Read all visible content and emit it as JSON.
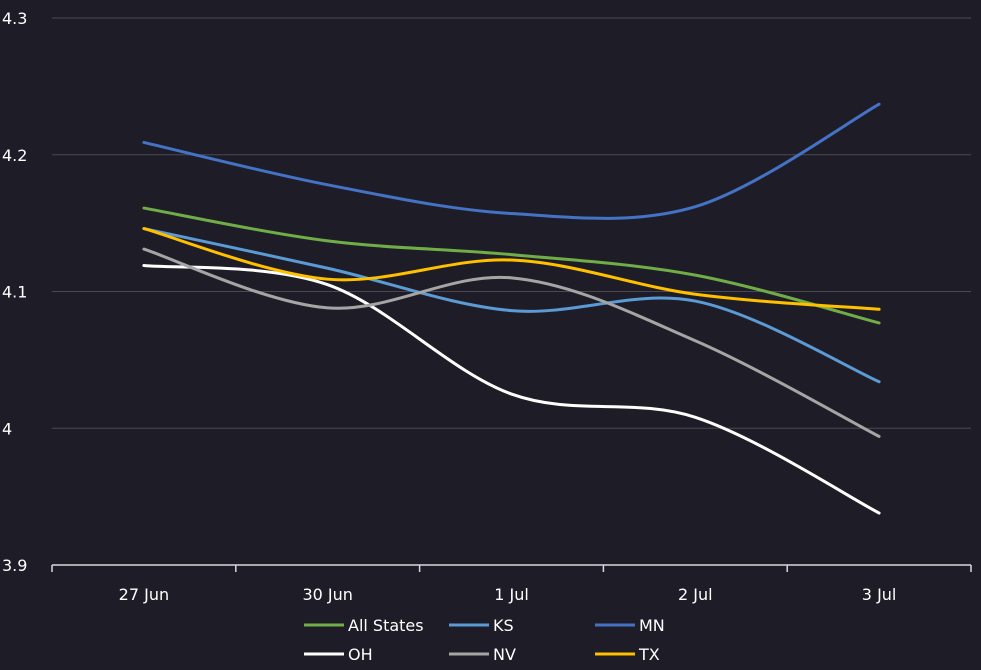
{
  "chart_data": {
    "type": "line",
    "title": "",
    "xlabel": "",
    "ylabel": "",
    "categories": [
      "27 Jun",
      "30 Jun",
      "1 Jul",
      "2 Jul",
      "3 Jul"
    ],
    "ylim": [
      3.9,
      4.3
    ],
    "yticks": [
      {
        "value": 3.9,
        "label": "3.9"
      },
      {
        "value": 4.0,
        "label": "4"
      },
      {
        "value": 4.1,
        "label": "4.1"
      },
      {
        "value": 4.2,
        "label": "4.2"
      },
      {
        "value": 4.3,
        "label": "4.3"
      }
    ],
    "grid": true,
    "legend_position": "bottom",
    "smooth": true,
    "series": [
      {
        "name": "All States",
        "color": "#70ad47",
        "values": [
          4.161,
          4.137,
          4.127,
          4.112,
          4.077
        ]
      },
      {
        "name": "KS",
        "color": "#5b9bd5",
        "values": [
          4.146,
          4.117,
          4.086,
          4.093,
          4.034
        ]
      },
      {
        "name": "MN",
        "color": "#4472c4",
        "values": [
          4.209,
          4.178,
          4.157,
          4.162,
          4.237
        ]
      },
      {
        "name": "OH",
        "color": "#ffffff",
        "values": [
          4.119,
          4.105,
          4.025,
          4.008,
          3.938
        ]
      },
      {
        "name": "NV",
        "color": "#a5a5a5",
        "values": [
          4.131,
          4.088,
          4.11,
          4.064,
          3.994
        ]
      },
      {
        "name": "TX",
        "color": "#ffc000",
        "values": [
          4.146,
          4.109,
          4.123,
          4.098,
          4.087
        ]
      }
    ]
  }
}
